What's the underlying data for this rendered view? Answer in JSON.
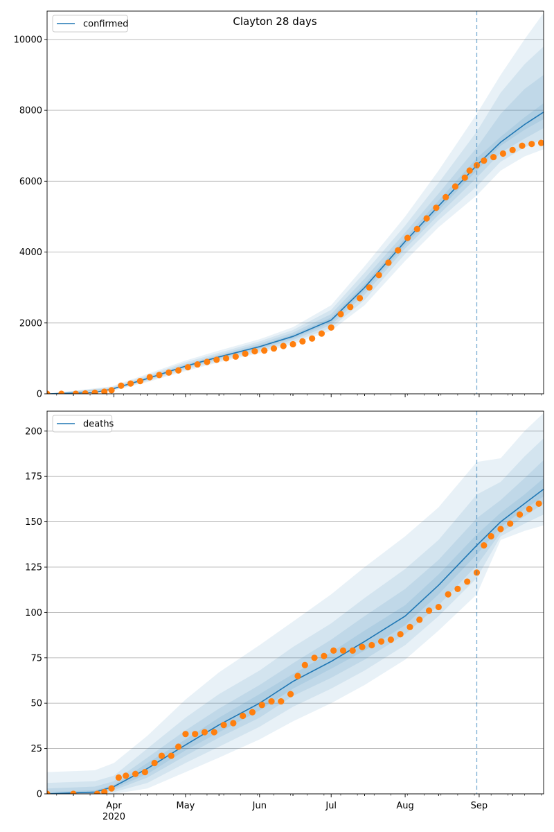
{
  "figure": {
    "suptitle": "Clayton 28 days",
    "year_label": "2020",
    "month_labels": [
      "Apr",
      "May",
      "Jun",
      "Jul",
      "Aug",
      "Sep"
    ]
  },
  "colors": {
    "model_line": "#1f77b4",
    "band": "#1f77b4",
    "observed_points": "#ff7f0e",
    "forecast_marker": "#1f77b4",
    "grid": "#b0b0b0"
  },
  "chart_data": [
    {
      "type": "line",
      "panel": "top",
      "title": "Clayton 28 days",
      "x_type": "date",
      "xlim": [
        "2020-03-04",
        "2020-09-28"
      ],
      "ylim": [
        0,
        10800
      ],
      "yticks": [
        0,
        2000,
        4000,
        6000,
        8000,
        10000
      ],
      "grid": "horizontal",
      "legend": {
        "entries": [
          "confirmed"
        ],
        "placement": "top-left"
      },
      "forecast_start": "2020-08-31",
      "model_series": {
        "name": "confirmed",
        "x": [
          "2020-03-04",
          "2020-03-24",
          "2020-03-31",
          "2020-04-15",
          "2020-05-01",
          "2020-05-15",
          "2020-06-01",
          "2020-06-15",
          "2020-07-01",
          "2020-07-15",
          "2020-08-01",
          "2020-08-15",
          "2020-08-31",
          "2020-09-10",
          "2020-09-20",
          "2020-09-28"
        ],
        "y": [
          0,
          40,
          130,
          430,
          780,
          1040,
          1330,
          1620,
          2080,
          3000,
          4300,
          5300,
          6450,
          7100,
          7600,
          7950
        ]
      },
      "bands": [
        {
          "x": [
            "2020-03-04",
            "2020-03-31",
            "2020-04-15",
            "2020-05-01",
            "2020-05-15",
            "2020-06-01",
            "2020-06-15",
            "2020-07-01",
            "2020-07-15",
            "2020-08-01",
            "2020-08-15",
            "2020-08-31",
            "2020-09-10",
            "2020-09-20",
            "2020-09-28"
          ],
          "lower": [
            0,
            80,
            330,
            640,
            890,
            1150,
            1400,
            1780,
            2500,
            3750,
            4700,
            5600,
            6300,
            6700,
            6900
          ],
          "upper": [
            0,
            210,
            560,
            940,
            1220,
            1540,
            1880,
            2500,
            3600,
            5000,
            6300,
            7900,
            9000,
            10000,
            10750
          ]
        },
        {
          "x": [
            "2020-03-04",
            "2020-03-31",
            "2020-04-15",
            "2020-05-01",
            "2020-05-15",
            "2020-06-01",
            "2020-06-15",
            "2020-07-01",
            "2020-07-15",
            "2020-08-01",
            "2020-08-15",
            "2020-08-31",
            "2020-09-10",
            "2020-09-20",
            "2020-09-28"
          ],
          "lower": [
            0,
            95,
            360,
            680,
            930,
            1200,
            1460,
            1860,
            2650,
            3950,
            4900,
            5850,
            6550,
            6950,
            7200
          ],
          "upper": [
            0,
            185,
            520,
            890,
            1160,
            1480,
            1800,
            2370,
            3420,
            4750,
            5950,
            7400,
            8500,
            9300,
            9800
          ]
        },
        {
          "x": [
            "2020-03-04",
            "2020-03-31",
            "2020-04-15",
            "2020-05-01",
            "2020-05-15",
            "2020-06-01",
            "2020-06-15",
            "2020-07-01",
            "2020-07-15",
            "2020-08-01",
            "2020-08-15",
            "2020-08-31",
            "2020-09-10",
            "2020-09-20",
            "2020-09-28"
          ],
          "lower": [
            0,
            110,
            390,
            720,
            970,
            1250,
            1520,
            1940,
            2800,
            4100,
            5050,
            6100,
            6800,
            7200,
            7500
          ],
          "upper": [
            0,
            160,
            480,
            840,
            1110,
            1420,
            1730,
            2250,
            3250,
            4550,
            5650,
            6950,
            7900,
            8600,
            9000
          ]
        },
        {
          "x": [
            "2020-03-04",
            "2020-03-31",
            "2020-04-15",
            "2020-05-01",
            "2020-05-15",
            "2020-06-01",
            "2020-06-15",
            "2020-07-01",
            "2020-07-15",
            "2020-08-01",
            "2020-08-15",
            "2020-08-31",
            "2020-09-10",
            "2020-09-20",
            "2020-09-28"
          ],
          "lower": [
            0,
            120,
            410,
            750,
            1005,
            1290,
            1570,
            2010,
            2900,
            4200,
            5180,
            6300,
            7000,
            7450,
            7750
          ],
          "upper": [
            0,
            145,
            455,
            810,
            1075,
            1370,
            1670,
            2150,
            3100,
            4400,
            5450,
            6650,
            7250,
            7800,
            8200
          ]
        }
      ],
      "observed_series": {
        "name": "observed",
        "x": [
          "2020-03-04",
          "2020-03-10",
          "2020-03-16",
          "2020-03-20",
          "2020-03-24",
          "2020-03-28",
          "2020-03-31",
          "2020-04-04",
          "2020-04-08",
          "2020-04-12",
          "2020-04-16",
          "2020-04-20",
          "2020-04-24",
          "2020-04-28",
          "2020-05-02",
          "2020-05-06",
          "2020-05-10",
          "2020-05-14",
          "2020-05-18",
          "2020-05-22",
          "2020-05-26",
          "2020-05-30",
          "2020-06-03",
          "2020-06-07",
          "2020-06-11",
          "2020-06-15",
          "2020-06-19",
          "2020-06-23",
          "2020-06-27",
          "2020-07-01",
          "2020-07-05",
          "2020-07-09",
          "2020-07-13",
          "2020-07-17",
          "2020-07-21",
          "2020-07-25",
          "2020-07-29",
          "2020-08-02",
          "2020-08-06",
          "2020-08-10",
          "2020-08-14",
          "2020-08-18",
          "2020-08-22",
          "2020-08-26",
          "2020-08-28",
          "2020-08-31",
          "2020-09-03",
          "2020-09-07",
          "2020-09-11",
          "2020-09-15",
          "2020-09-19",
          "2020-09-23",
          "2020-09-27"
        ],
        "y": [
          0,
          0,
          0,
          10,
          30,
          60,
          100,
          230,
          290,
          360,
          470,
          530,
          600,
          660,
          750,
          830,
          900,
          960,
          1000,
          1050,
          1130,
          1200,
          1220,
          1280,
          1350,
          1400,
          1480,
          1560,
          1700,
          1870,
          2250,
          2450,
          2700,
          3000,
          3350,
          3700,
          4050,
          4400,
          4650,
          4950,
          5250,
          5550,
          5850,
          6100,
          6300,
          6450,
          6580,
          6680,
          6780,
          6880,
          7000,
          7050,
          7080
        ]
      }
    },
    {
      "type": "line",
      "panel": "bottom",
      "x_type": "date",
      "xlim": [
        "2020-03-04",
        "2020-09-28"
      ],
      "ylim": [
        0,
        211
      ],
      "yticks": [
        0,
        25,
        50,
        75,
        100,
        125,
        150,
        175,
        200
      ],
      "xticks": [
        "2020-04-01",
        "2020-05-01",
        "2020-06-01",
        "2020-07-01",
        "2020-08-01",
        "2020-09-01"
      ],
      "grid": "horizontal",
      "legend": {
        "entries": [
          "deaths"
        ],
        "placement": "top-left"
      },
      "forecast_start": "2020-08-31",
      "model_series": {
        "name": "deaths",
        "x": [
          "2020-03-04",
          "2020-03-24",
          "2020-04-01",
          "2020-04-15",
          "2020-05-01",
          "2020-05-15",
          "2020-06-01",
          "2020-06-15",
          "2020-07-01",
          "2020-07-15",
          "2020-08-01",
          "2020-08-15",
          "2020-08-31",
          "2020-09-10",
          "2020-09-20",
          "2020-09-28"
        ],
        "y": [
          0,
          1,
          4,
          14,
          27,
          38,
          50,
          62,
          73,
          84,
          98,
          115,
          137,
          150,
          160,
          168
        ]
      },
      "bands": [
        {
          "x": [
            "2020-03-04",
            "2020-03-24",
            "2020-04-01",
            "2020-04-15",
            "2020-05-01",
            "2020-05-15",
            "2020-06-01",
            "2020-06-15",
            "2020-07-01",
            "2020-07-15",
            "2020-08-01",
            "2020-08-15",
            "2020-08-31",
            "2020-09-10",
            "2020-09-20",
            "2020-09-28"
          ],
          "lower": [
            0,
            0,
            0,
            3,
            12,
            20,
            30,
            40,
            50,
            60,
            74,
            90,
            110,
            140,
            145,
            148
          ],
          "upper": [
            12,
            13,
            17,
            32,
            52,
            67,
            82,
            95,
            110,
            125,
            142,
            158,
            183,
            185,
            200,
            210
          ]
        },
        {
          "x": [
            "2020-03-04",
            "2020-03-24",
            "2020-04-01",
            "2020-04-15",
            "2020-05-01",
            "2020-05-15",
            "2020-06-01",
            "2020-06-15",
            "2020-07-01",
            "2020-07-15",
            "2020-08-01",
            "2020-08-15",
            "2020-08-31",
            "2020-09-10",
            "2020-09-20",
            "2020-09-28"
          ],
          "lower": [
            0,
            0,
            1,
            6,
            17,
            26,
            37,
            48,
            58,
            68,
            82,
            98,
            119,
            142,
            149,
            154
          ],
          "upper": [
            6,
            7,
            10,
            25,
            42,
            55,
            68,
            81,
            94,
            108,
            124,
            140,
            165,
            172,
            186,
            196
          ]
        },
        {
          "x": [
            "2020-03-04",
            "2020-03-24",
            "2020-04-01",
            "2020-04-15",
            "2020-05-01",
            "2020-05-15",
            "2020-06-01",
            "2020-06-15",
            "2020-07-01",
            "2020-07-15",
            "2020-08-01",
            "2020-08-15",
            "2020-08-31",
            "2020-09-10",
            "2020-09-20",
            "2020-09-28"
          ],
          "lower": [
            0,
            0,
            2,
            9,
            21,
            31,
            42,
            54,
            64,
            74,
            88,
            104,
            126,
            144,
            153,
            160
          ],
          "upper": [
            3,
            4,
            7,
            20,
            35,
            47,
            60,
            72,
            85,
            98,
            113,
            129,
            152,
            162,
            174,
            184
          ]
        },
        {
          "x": [
            "2020-03-04",
            "2020-03-24",
            "2020-04-01",
            "2020-04-15",
            "2020-05-01",
            "2020-05-15",
            "2020-06-01",
            "2020-06-15",
            "2020-07-01",
            "2020-07-15",
            "2020-08-01",
            "2020-08-15",
            "2020-08-31",
            "2020-09-10",
            "2020-09-20",
            "2020-09-28"
          ],
          "lower": [
            0,
            0,
            3,
            11,
            24,
            34,
            46,
            58,
            69,
            79,
            93,
            110,
            132,
            147,
            157,
            164
          ],
          "upper": [
            1,
            2,
            5,
            17,
            30,
            42,
            55,
            66,
            78,
            90,
            104,
            121,
            143,
            155,
            165,
            174
          ]
        }
      ],
      "observed_series": {
        "name": "observed",
        "x": [
          "2020-03-04",
          "2020-03-15",
          "2020-03-25",
          "2020-03-28",
          "2020-03-31",
          "2020-04-03",
          "2020-04-06",
          "2020-04-10",
          "2020-04-14",
          "2020-04-18",
          "2020-04-21",
          "2020-04-25",
          "2020-04-28",
          "2020-05-01",
          "2020-05-05",
          "2020-05-09",
          "2020-05-13",
          "2020-05-17",
          "2020-05-21",
          "2020-05-25",
          "2020-05-29",
          "2020-06-02",
          "2020-06-06",
          "2020-06-10",
          "2020-06-14",
          "2020-06-17",
          "2020-06-20",
          "2020-06-24",
          "2020-06-28",
          "2020-07-02",
          "2020-07-06",
          "2020-07-10",
          "2020-07-14",
          "2020-07-18",
          "2020-07-22",
          "2020-07-26",
          "2020-07-30",
          "2020-08-03",
          "2020-08-07",
          "2020-08-11",
          "2020-08-15",
          "2020-08-19",
          "2020-08-23",
          "2020-08-27",
          "2020-08-31",
          "2020-09-03",
          "2020-09-06",
          "2020-09-10",
          "2020-09-14",
          "2020-09-18",
          "2020-09-22",
          "2020-09-26"
        ],
        "y": [
          0,
          0,
          0,
          1,
          3,
          9,
          10,
          11,
          12,
          17,
          21,
          21,
          26,
          33,
          33,
          34,
          34,
          38,
          39,
          43,
          45,
          49,
          51,
          51,
          55,
          65,
          71,
          75,
          76,
          79,
          79,
          79,
          81,
          82,
          84,
          85,
          88,
          92,
          96,
          101,
          103,
          110,
          113,
          117,
          122,
          137,
          142,
          146,
          149,
          154,
          157,
          160
        ]
      }
    }
  ]
}
